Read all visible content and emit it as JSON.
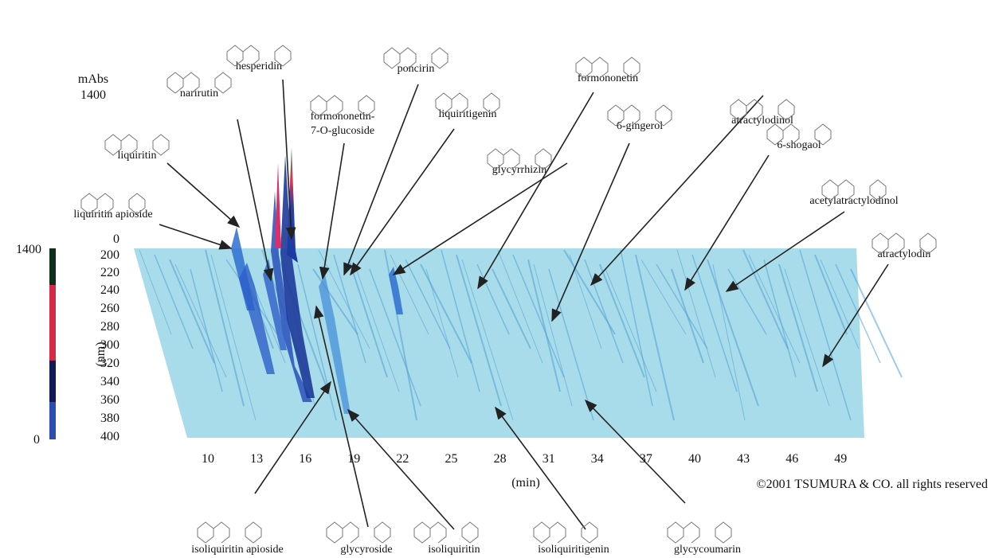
{
  "y_axis": {
    "unit": "mAbs",
    "max": "1400"
  },
  "wavelength_axis": {
    "label": "(nm)",
    "ticks": [
      "0",
      "200",
      "220",
      "240",
      "260",
      "280",
      "300",
      "320",
      "340",
      "360",
      "380",
      "400"
    ]
  },
  "time_axis": {
    "label": "(min)",
    "ticks": [
      "10",
      "13",
      "16",
      "19",
      "22",
      "25",
      "28",
      "31",
      "34",
      "37",
      "40",
      "43",
      "46",
      "49"
    ]
  },
  "colorbar": {
    "top": "1400",
    "bottom": "0"
  },
  "compounds_top": [
    "narirutin",
    "hesperidin",
    "poncirin",
    "formononetin-",
    "7-O-glucoside",
    "liquiritigenin",
    "glycyrrhizin",
    "formononetin",
    "6-gingerol",
    "atractylodinol",
    "6-shogaol",
    "acetylatractylodinol",
    "atractylodin",
    "liquiritin",
    "liquiritin apioside"
  ],
  "compounds_bottom": [
    "isoliquiritin apioside",
    "glycyroside",
    "isoliquiritin",
    "isoliquiritigenin",
    "glycycoumarin"
  ],
  "copyright": "©2001 TSUMURA & CO. all rights reserved"
}
